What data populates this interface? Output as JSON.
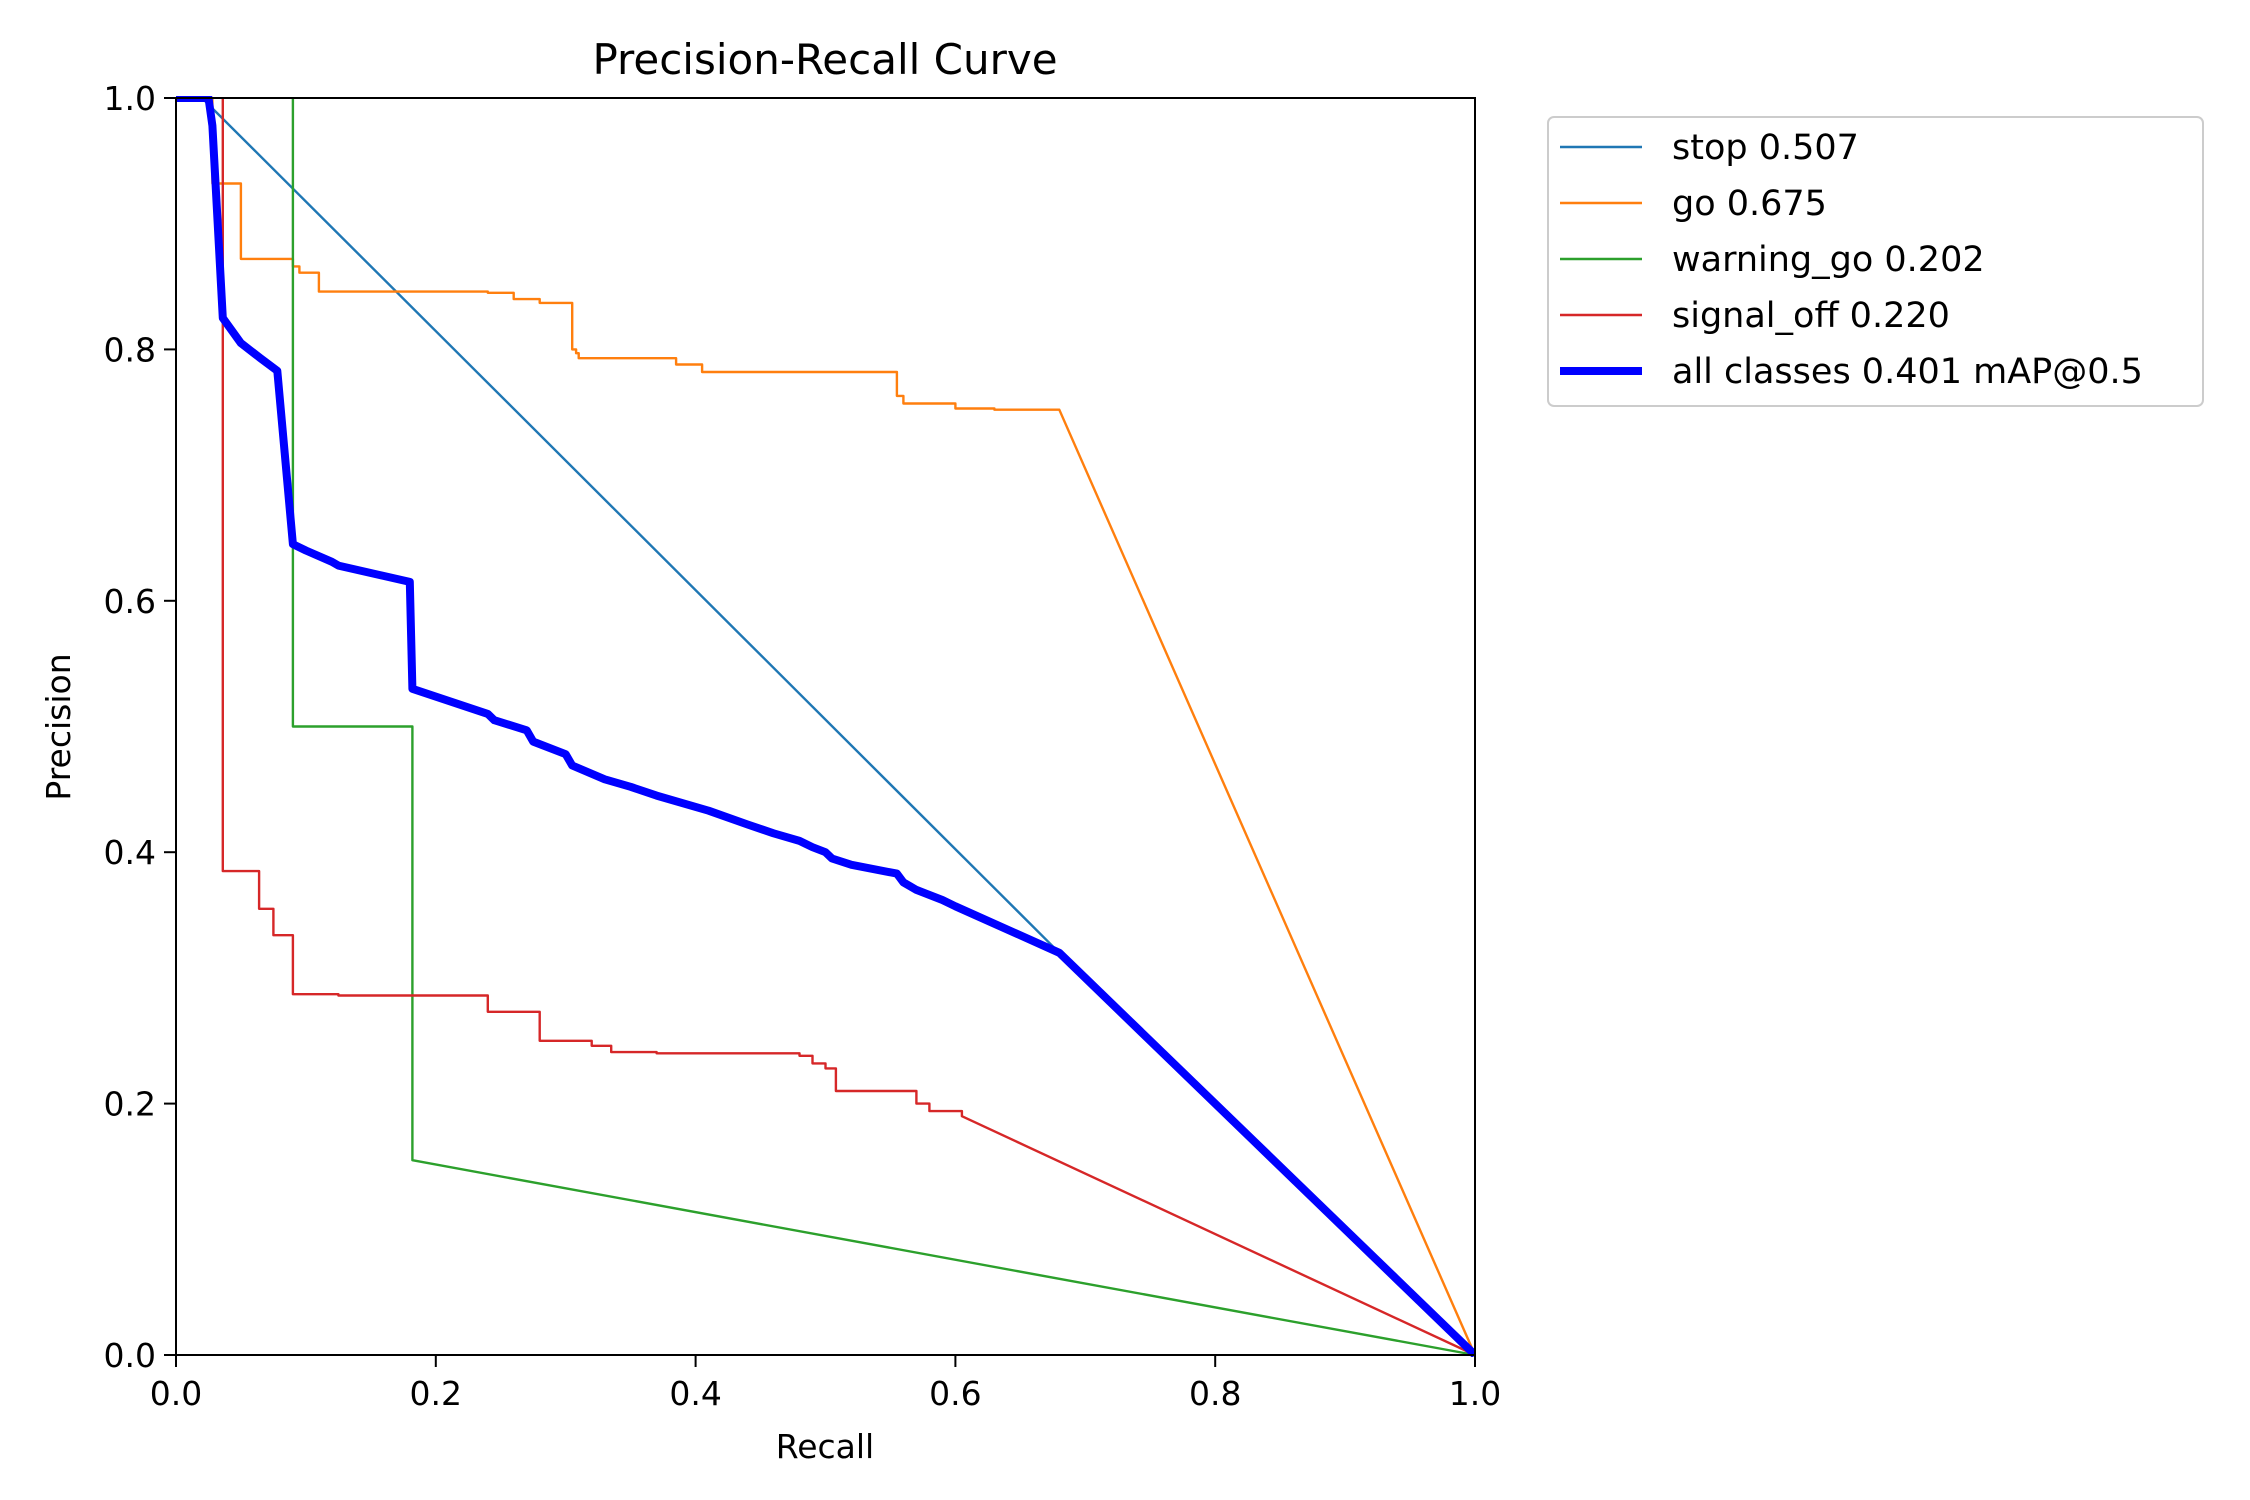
{
  "chart_data": {
    "type": "line",
    "title": "Precision-Recall Curve",
    "xlabel": "Recall",
    "ylabel": "Precision",
    "xlim": [
      0,
      1
    ],
    "ylim": [
      0,
      1
    ],
    "xticks": [
      "0.0",
      "0.2",
      "0.4",
      "0.6",
      "0.8",
      "1.0"
    ],
    "yticks": [
      "0.0",
      "0.2",
      "0.4",
      "0.6",
      "0.8",
      "1.0"
    ],
    "grid": false,
    "legend_position": "outside-top-right",
    "series": [
      {
        "name": "stop 0.507",
        "color": "#1f77b4",
        "width": "thin",
        "x": [
          0,
          0.02,
          0.68,
          1.0
        ],
        "y": [
          1.0,
          1.0,
          0.32,
          0.0
        ]
      },
      {
        "name": "go 0.675",
        "color": "#ff7f0e",
        "width": "thin",
        "x": [
          0,
          0.028,
          0.028,
          0.05,
          0.05,
          0.09,
          0.09,
          0.095,
          0.095,
          0.11,
          0.11,
          0.24,
          0.24,
          0.26,
          0.26,
          0.28,
          0.28,
          0.305,
          0.305,
          0.308,
          0.308,
          0.31,
          0.31,
          0.385,
          0.385,
          0.405,
          0.405,
          0.555,
          0.555,
          0.56,
          0.56,
          0.6,
          0.6,
          0.63,
          0.63,
          0.68,
          1.0
        ],
        "y": [
          1.0,
          1.0,
          0.932,
          0.932,
          0.872,
          0.872,
          0.866,
          0.866,
          0.861,
          0.861,
          0.846,
          0.846,
          0.845,
          0.845,
          0.84,
          0.84,
          0.837,
          0.837,
          0.8,
          0.8,
          0.797,
          0.797,
          0.793,
          0.793,
          0.788,
          0.788,
          0.782,
          0.782,
          0.763,
          0.763,
          0.757,
          0.757,
          0.753,
          0.753,
          0.752,
          0.752,
          0.0
        ]
      },
      {
        "name": "warning_go 0.202",
        "color": "#2ca02c",
        "width": "thin",
        "x": [
          0.09,
          0.09,
          0.182,
          0.182,
          1.0
        ],
        "y": [
          1.0,
          0.5,
          0.5,
          0.155,
          0.0
        ]
      },
      {
        "name": "signal_off 0.220",
        "color": "#d62728",
        "width": "thin",
        "x": [
          0.036,
          0.036,
          0.064,
          0.064,
          0.075,
          0.075,
          0.09,
          0.09,
          0.125,
          0.125,
          0.24,
          0.24,
          0.28,
          0.28,
          0.32,
          0.32,
          0.335,
          0.335,
          0.37,
          0.37,
          0.48,
          0.48,
          0.49,
          0.49,
          0.5,
          0.5,
          0.508,
          0.508,
          0.57,
          0.57,
          0.58,
          0.58,
          0.605,
          0.605,
          1.0
        ],
        "y": [
          1.0,
          0.385,
          0.385,
          0.355,
          0.355,
          0.334,
          0.334,
          0.287,
          0.287,
          0.286,
          0.286,
          0.273,
          0.273,
          0.25,
          0.25,
          0.246,
          0.246,
          0.241,
          0.241,
          0.24,
          0.24,
          0.238,
          0.238,
          0.232,
          0.232,
          0.228,
          0.228,
          0.21,
          0.21,
          0.2,
          0.2,
          0.194,
          0.194,
          0.19,
          0.0
        ]
      },
      {
        "name": "all classes 0.401 mAP@0.5",
        "color": "#0000ff",
        "width": "thick",
        "x": [
          0,
          0.025,
          0.028,
          0.028,
          0.036,
          0.036,
          0.05,
          0.05,
          0.065,
          0.065,
          0.078,
          0.078,
          0.09,
          0.09,
          0.1,
          0.1,
          0.12,
          0.125,
          0.18,
          0.182,
          0.24,
          0.245,
          0.27,
          0.275,
          0.3,
          0.305,
          0.33,
          0.35,
          0.37,
          0.41,
          0.44,
          0.46,
          0.48,
          0.49,
          0.5,
          0.505,
          0.52,
          0.555,
          0.56,
          0.565,
          0.57,
          0.59,
          0.6,
          0.68,
          1.0
        ],
        "y": [
          1.0,
          1.0,
          0.978,
          0.978,
          0.825,
          0.825,
          0.805,
          0.805,
          0.793,
          0.793,
          0.783,
          0.783,
          0.645,
          0.645,
          0.64,
          0.64,
          0.631,
          0.628,
          0.615,
          0.53,
          0.51,
          0.505,
          0.497,
          0.488,
          0.478,
          0.469,
          0.458,
          0.452,
          0.445,
          0.433,
          0.422,
          0.415,
          0.409,
          0.404,
          0.4,
          0.395,
          0.39,
          0.383,
          0.376,
          0.373,
          0.37,
          0.362,
          0.357,
          0.32,
          0.0
        ]
      }
    ]
  }
}
